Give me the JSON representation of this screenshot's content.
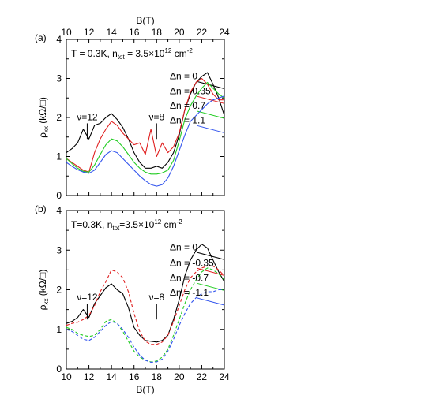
{
  "chart_data": [
    {
      "type": "line",
      "panel_label": "(a)",
      "annotation": {
        "main": "T = 0.3K, n",
        "sub": "tot",
        "rest": " = 3.5×10",
        "sup": "12",
        "unit": " cm",
        "unit_sup": "-2"
      },
      "top_axis_label": "B(T)",
      "xlabel": "",
      "ylabel": {
        "main": "ρ",
        "sub": "xx",
        "unit": " (kΩ/□)"
      },
      "xlim": [
        10,
        24
      ],
      "ylim": [
        0,
        4
      ],
      "xticks": [
        10,
        12,
        14,
        16,
        18,
        20,
        22,
        24
      ],
      "yticks": [
        0,
        1,
        2,
        3,
        4
      ],
      "filling_labels": [
        {
          "text": "ν=12",
          "x": 11.85,
          "y_line": [
            1.45,
            1.85
          ]
        },
        {
          "text": "ν=8",
          "x": 18.0,
          "y_line": [
            1.45,
            1.85
          ]
        }
      ],
      "series": [
        {
          "name": "Δn = 0",
          "color": "#000000",
          "dashed": false,
          "label_y": 2.98,
          "x": [
            10,
            10.5,
            11,
            11.5,
            12,
            12.5,
            13,
            13.5,
            14,
            14.5,
            15,
            15.5,
            16,
            16.5,
            17,
            17.5,
            18,
            18.5,
            19,
            19.5,
            20,
            20.5,
            21,
            21.5,
            22,
            22.5,
            23,
            23.5,
            24
          ],
          "y": [
            1.1,
            1.2,
            1.35,
            1.7,
            1.45,
            1.8,
            1.85,
            2.0,
            2.1,
            1.95,
            1.75,
            1.45,
            1.1,
            0.85,
            0.7,
            0.7,
            0.75,
            0.7,
            0.85,
            1.1,
            1.55,
            2.2,
            2.6,
            2.9,
            3.05,
            3.15,
            2.85,
            2.5,
            2.05
          ]
        },
        {
          "name": "Δn = 0.35",
          "color": "#e02020",
          "dashed": false,
          "label_y": 2.6,
          "x": [
            10,
            10.5,
            11,
            11.5,
            12,
            12.5,
            13,
            13.5,
            14,
            14.5,
            15,
            15.5,
            16,
            16.5,
            17,
            17.5,
            18,
            18.5,
            19,
            19.5,
            20,
            20.5,
            21,
            21.5,
            22,
            22.5,
            23,
            23.5,
            24
          ],
          "y": [
            0.95,
            0.85,
            0.75,
            0.65,
            0.6,
            1.1,
            1.45,
            1.7,
            1.9,
            1.8,
            1.6,
            1.45,
            1.3,
            1.35,
            1.05,
            1.7,
            1.0,
            1.35,
            1.1,
            1.25,
            1.6,
            2.2,
            2.65,
            2.9,
            3.0,
            2.85,
            2.6,
            2.45,
            2.45
          ]
        },
        {
          "name": "Δn = 0.7",
          "color": "#22cc22",
          "dashed": false,
          "label_y": 2.22,
          "x": [
            10,
            10.5,
            11,
            11.5,
            12,
            12.5,
            13,
            13.5,
            14,
            14.5,
            15,
            15.5,
            16,
            16.5,
            17,
            17.5,
            18,
            18.5,
            19,
            19.5,
            20,
            20.5,
            21,
            21.5,
            22,
            22.5,
            23,
            23.5,
            24
          ],
          "y": [
            0.95,
            0.82,
            0.7,
            0.62,
            0.6,
            0.78,
            1.05,
            1.3,
            1.45,
            1.4,
            1.25,
            1.05,
            0.85,
            0.7,
            0.6,
            0.55,
            0.55,
            0.58,
            0.65,
            0.9,
            1.4,
            1.95,
            2.3,
            2.55,
            2.75,
            2.9,
            2.75,
            2.6,
            2.5
          ]
        },
        {
          "name": "Δn = 1.1",
          "color": "#3355ee",
          "dashed": false,
          "label_y": 1.85,
          "x": [
            10,
            10.5,
            11,
            11.5,
            12,
            12.5,
            13,
            13.5,
            14,
            14.5,
            15,
            15.5,
            16,
            16.5,
            17,
            17.5,
            18,
            18.5,
            19,
            19.5,
            20,
            20.5,
            21,
            21.5,
            22,
            22.5,
            23,
            23.5,
            24
          ],
          "y": [
            0.85,
            0.75,
            0.66,
            0.6,
            0.57,
            0.65,
            0.85,
            1.05,
            1.15,
            1.1,
            0.95,
            0.8,
            0.65,
            0.5,
            0.38,
            0.28,
            0.24,
            0.28,
            0.45,
            0.75,
            1.15,
            1.55,
            1.9,
            2.05,
            2.2,
            2.35,
            2.45,
            2.5,
            2.55
          ]
        }
      ]
    },
    {
      "type": "line",
      "panel_label": "(b)",
      "annotation": {
        "main": "T=0.3K, n",
        "sub": "tot",
        "rest": "=3.5×10",
        "sup": "12",
        "unit": " cm",
        "unit_sup": "-2"
      },
      "xlabel": "B(T)",
      "ylabel": {
        "main": "ρ",
        "sub": "xx",
        "unit": " (kΩ/□)"
      },
      "xlim": [
        10,
        24
      ],
      "ylim": [
        0,
        4
      ],
      "xticks": [
        10,
        12,
        14,
        16,
        18,
        20,
        22,
        24
      ],
      "yticks": [
        0,
        1,
        2,
        3,
        4
      ],
      "filling_labels": [
        {
          "text": "ν=12",
          "x": 11.85,
          "y_line": [
            1.25,
            1.65
          ]
        },
        {
          "text": "ν=8",
          "x": 18.0,
          "y_line": [
            1.25,
            1.65
          ]
        }
      ],
      "series": [
        {
          "name": "Δn = 0",
          "color": "#000000",
          "dashed": false,
          "label_y": 3.0,
          "x": [
            10,
            10.5,
            11,
            11.5,
            12,
            12.5,
            13,
            13.5,
            14,
            14.5,
            15,
            15.5,
            16,
            16.5,
            17,
            17.5,
            18,
            18.5,
            19,
            19.5,
            20,
            20.5,
            21,
            21.5,
            22,
            22.5,
            23,
            23.5,
            24
          ],
          "y": [
            1.15,
            1.2,
            1.3,
            1.5,
            1.3,
            1.65,
            1.85,
            2.05,
            2.15,
            2.0,
            1.9,
            1.55,
            1.05,
            0.85,
            0.72,
            0.7,
            0.68,
            0.72,
            0.85,
            1.25,
            1.75,
            2.35,
            2.75,
            3.0,
            3.15,
            3.05,
            2.75,
            2.45,
            2.2
          ]
        },
        {
          "name": "Δn = -0.35",
          "color": "#e02020",
          "dashed": true,
          "label_y": 2.6,
          "x": [
            10,
            10.5,
            11,
            11.5,
            12,
            12.5,
            13,
            13.5,
            14,
            14.5,
            15,
            15.5,
            16,
            16.5,
            17,
            17.5,
            18,
            18.5,
            19,
            19.5,
            20,
            20.5,
            21,
            21.5,
            22,
            22.5,
            23,
            23.5,
            24
          ],
          "y": [
            1.1,
            1.15,
            1.18,
            1.25,
            1.35,
            1.6,
            1.95,
            2.2,
            2.5,
            2.45,
            2.3,
            1.95,
            1.4,
            0.95,
            0.7,
            0.62,
            0.62,
            0.68,
            0.85,
            1.2,
            1.6,
            2.0,
            2.3,
            2.45,
            2.55,
            2.6,
            2.6,
            2.5,
            2.35
          ]
        },
        {
          "name": "Δn = -0.7",
          "color": "#22cc22",
          "dashed": true,
          "label_y": 2.22,
          "x": [
            10,
            10.5,
            11,
            11.5,
            12,
            12.5,
            13,
            13.5,
            14,
            14.5,
            15,
            15.5,
            16,
            16.5,
            17,
            17.5,
            18,
            18.5,
            19,
            19.5,
            20,
            20.5,
            21,
            21.5,
            22,
            22.5,
            23,
            23.5,
            24
          ],
          "y": [
            1.05,
            1.0,
            0.9,
            0.85,
            0.82,
            0.85,
            1.0,
            1.2,
            1.25,
            1.15,
            0.95,
            0.7,
            0.45,
            0.3,
            0.22,
            0.18,
            0.2,
            0.3,
            0.5,
            0.85,
            1.25,
            1.65,
            2.0,
            2.25,
            2.45,
            2.55,
            2.5,
            2.4,
            2.25
          ]
        },
        {
          "name": "Δn = -1.1",
          "color": "#3355ee",
          "dashed": true,
          "label_y": 1.85,
          "x": [
            10,
            10.5,
            11,
            11.5,
            12,
            12.5,
            13,
            13.5,
            14,
            14.5,
            15,
            15.5,
            16,
            16.5,
            17,
            17.5,
            18,
            18.5,
            19,
            19.5,
            20,
            20.5,
            21,
            21.5,
            22,
            22.5,
            23,
            23.5,
            24
          ],
          "y": [
            1.0,
            0.95,
            0.85,
            0.75,
            0.72,
            0.8,
            0.95,
            1.1,
            1.2,
            1.15,
            1.0,
            0.8,
            0.55,
            0.35,
            0.22,
            0.17,
            0.18,
            0.25,
            0.45,
            0.75,
            1.1,
            1.4,
            1.65,
            1.8,
            1.9,
            1.95,
            1.95,
            2.0,
            2.0
          ]
        }
      ]
    }
  ]
}
